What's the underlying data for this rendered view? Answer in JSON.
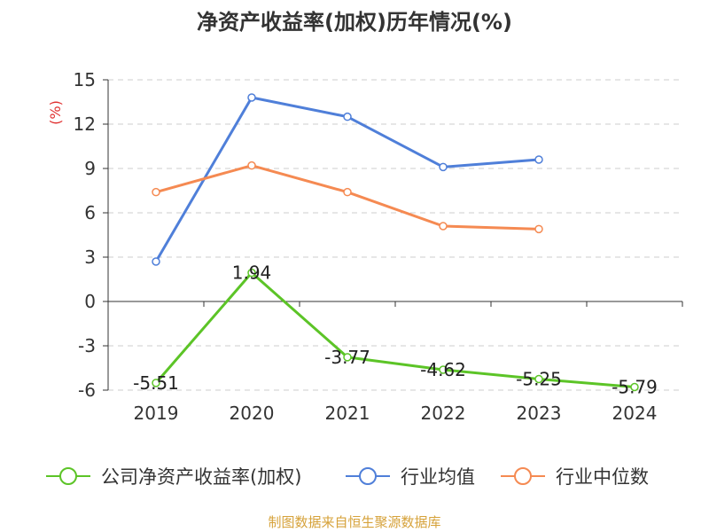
{
  "chart_data": {
    "type": "line",
    "title": "净资产收益率(加权)历年情况(%)",
    "ylabel": "(%)",
    "categories": [
      "2019",
      "2020",
      "2021",
      "2022",
      "2023",
      "2024"
    ],
    "y_ticks": [
      15,
      12,
      9,
      6,
      3,
      0,
      -3,
      -6
    ],
    "ylim": [
      -6,
      15
    ],
    "grid": true,
    "legend_position": "bottom",
    "series": [
      {
        "name": "公司净资产收益率(加权)",
        "color": "#5cc427",
        "values": [
          -5.51,
          1.94,
          -3.77,
          -4.62,
          -5.25,
          -5.79
        ],
        "labels": [
          "-5.51",
          "1.94",
          "-3.77",
          "-4.62",
          "-5.25",
          "-5.79"
        ]
      },
      {
        "name": "行业均值",
        "color": "#4f7fd9",
        "values": [
          2.7,
          13.8,
          12.5,
          9.1,
          9.6,
          null
        ]
      },
      {
        "name": "行业中位数",
        "color": "#f58a52",
        "values": [
          7.4,
          9.2,
          7.4,
          5.1,
          4.9,
          null
        ]
      }
    ],
    "source": "制图数据来自恒生聚源数据库",
    "source_color": "#d6a23a",
    "unit_color": "#e03131"
  }
}
